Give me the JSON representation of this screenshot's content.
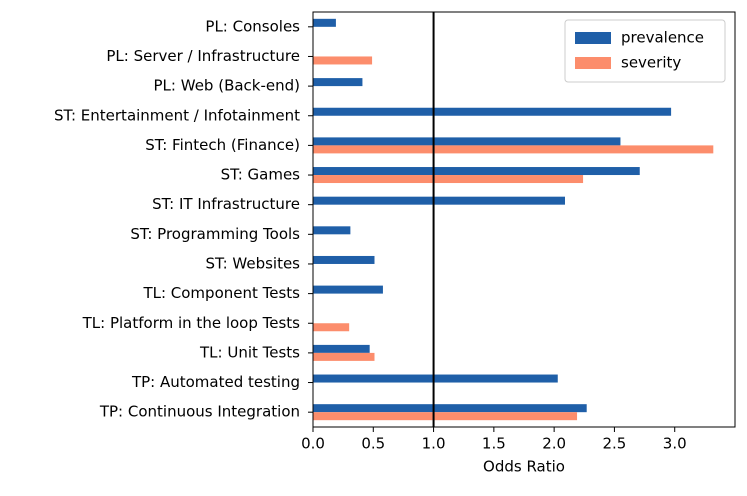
{
  "chart_data": {
    "type": "hbar",
    "x_label": "Odds Ratio",
    "categories": [
      "PL: Consoles",
      "PL: Server / Infrastructure",
      "PL: Web (Back-end)",
      "ST: Entertainment / Infotainment",
      "ST: Fintech (Finance)",
      "ST: Games",
      "ST: IT Infrastructure",
      "ST: Programming Tools",
      "ST: Websites",
      "TL: Component Tests",
      "TL: Platform in the loop Tests",
      "TL: Unit Tests",
      "TP: Automated testing",
      "TP: Continuous Integration"
    ],
    "series": [
      {
        "name": "prevalence",
        "color": "#1f5fa8",
        "values": [
          0.19,
          null,
          0.41,
          2.97,
          2.55,
          2.71,
          2.09,
          0.31,
          0.51,
          0.58,
          null,
          0.47,
          2.03,
          2.27
        ]
      },
      {
        "name": "severity",
        "color": "#fc8d6c",
        "values": [
          null,
          0.49,
          null,
          null,
          3.32,
          2.24,
          null,
          null,
          null,
          null,
          0.3,
          0.51,
          null,
          2.19
        ]
      }
    ],
    "xlim": [
      0,
      3.5
    ],
    "xticks": [
      {
        "value": 0,
        "label": "0.0"
      },
      0.5,
      {
        "value": 1,
        "label": "1.0"
      },
      1.5,
      {
        "value": 2,
        "label": "2.0"
      },
      2.5,
      {
        "value": 3,
        "label": "3.0"
      }
    ],
    "reference_line": 1,
    "legend": "upper right"
  }
}
